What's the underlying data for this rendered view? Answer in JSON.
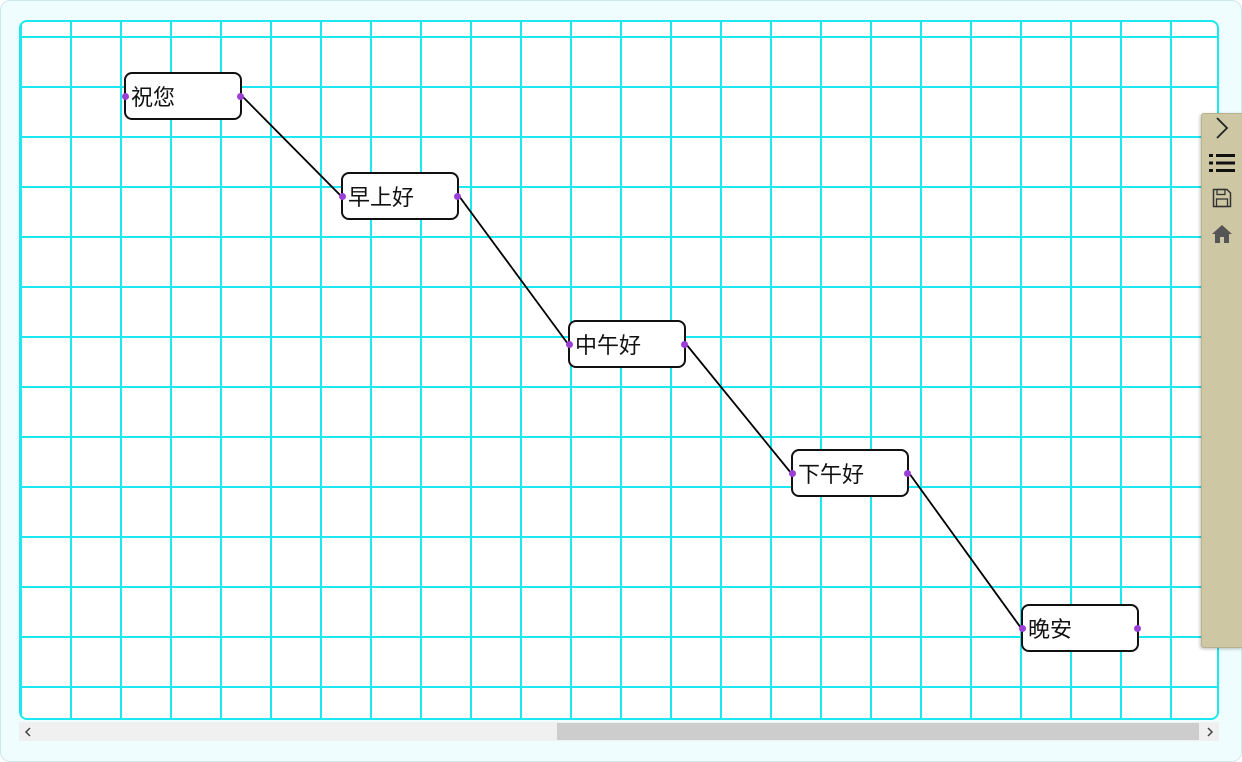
{
  "diagram": {
    "nodes": [
      {
        "id": "n1",
        "label": "祝您"
      },
      {
        "id": "n2",
        "label": "早上好"
      },
      {
        "id": "n3",
        "label": "中午好"
      },
      {
        "id": "n4",
        "label": "下午好"
      },
      {
        "id": "n5",
        "label": "晚安"
      }
    ],
    "edges": [
      {
        "from": "n1",
        "to": "n2"
      },
      {
        "from": "n2",
        "to": "n3"
      },
      {
        "from": "n3",
        "to": "n4"
      },
      {
        "from": "n4",
        "to": "n5"
      }
    ]
  },
  "toolbar": {
    "items": [
      {
        "name": "collapse",
        "icon": "chevron-right-icon"
      },
      {
        "name": "list",
        "icon": "list-icon"
      },
      {
        "name": "save",
        "icon": "save-icon"
      },
      {
        "name": "home",
        "icon": "home-icon"
      }
    ]
  },
  "colors": {
    "grid": "#1de7f0",
    "port": "#9b3fd6",
    "edge": "#000000",
    "panel": "#cdc7a4",
    "background": "#f0fdff"
  }
}
